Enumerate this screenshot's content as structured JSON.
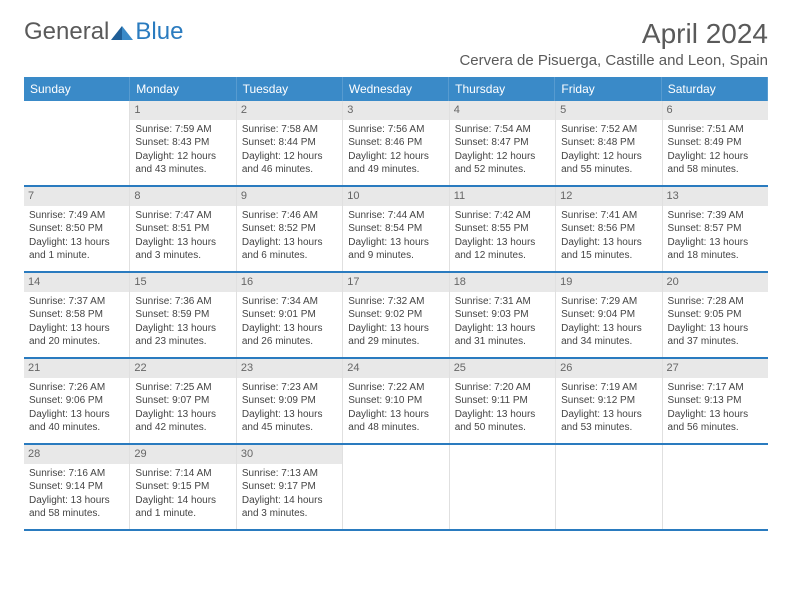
{
  "logo": {
    "text1": "General",
    "text2": "Blue"
  },
  "title": "April 2024",
  "location": "Cervera de Pisuerga, Castille and Leon, Spain",
  "colors": {
    "header_bg": "#3a8ac8",
    "header_text": "#ffffff",
    "row_divider": "#2a7bbf",
    "daynum_bg": "#e8e8e8",
    "text": "#444444"
  },
  "dayHeaders": [
    "Sunday",
    "Monday",
    "Tuesday",
    "Wednesday",
    "Thursday",
    "Friday",
    "Saturday"
  ],
  "weeks": [
    [
      {
        "n": "",
        "sr": "",
        "ss": "",
        "dl": ""
      },
      {
        "n": "1",
        "sr": "Sunrise: 7:59 AM",
        "ss": "Sunset: 8:43 PM",
        "dl": "Daylight: 12 hours and 43 minutes."
      },
      {
        "n": "2",
        "sr": "Sunrise: 7:58 AM",
        "ss": "Sunset: 8:44 PM",
        "dl": "Daylight: 12 hours and 46 minutes."
      },
      {
        "n": "3",
        "sr": "Sunrise: 7:56 AM",
        "ss": "Sunset: 8:46 PM",
        "dl": "Daylight: 12 hours and 49 minutes."
      },
      {
        "n": "4",
        "sr": "Sunrise: 7:54 AM",
        "ss": "Sunset: 8:47 PM",
        "dl": "Daylight: 12 hours and 52 minutes."
      },
      {
        "n": "5",
        "sr": "Sunrise: 7:52 AM",
        "ss": "Sunset: 8:48 PM",
        "dl": "Daylight: 12 hours and 55 minutes."
      },
      {
        "n": "6",
        "sr": "Sunrise: 7:51 AM",
        "ss": "Sunset: 8:49 PM",
        "dl": "Daylight: 12 hours and 58 minutes."
      }
    ],
    [
      {
        "n": "7",
        "sr": "Sunrise: 7:49 AM",
        "ss": "Sunset: 8:50 PM",
        "dl": "Daylight: 13 hours and 1 minute."
      },
      {
        "n": "8",
        "sr": "Sunrise: 7:47 AM",
        "ss": "Sunset: 8:51 PM",
        "dl": "Daylight: 13 hours and 3 minutes."
      },
      {
        "n": "9",
        "sr": "Sunrise: 7:46 AM",
        "ss": "Sunset: 8:52 PM",
        "dl": "Daylight: 13 hours and 6 minutes."
      },
      {
        "n": "10",
        "sr": "Sunrise: 7:44 AM",
        "ss": "Sunset: 8:54 PM",
        "dl": "Daylight: 13 hours and 9 minutes."
      },
      {
        "n": "11",
        "sr": "Sunrise: 7:42 AM",
        "ss": "Sunset: 8:55 PM",
        "dl": "Daylight: 13 hours and 12 minutes."
      },
      {
        "n": "12",
        "sr": "Sunrise: 7:41 AM",
        "ss": "Sunset: 8:56 PM",
        "dl": "Daylight: 13 hours and 15 minutes."
      },
      {
        "n": "13",
        "sr": "Sunrise: 7:39 AM",
        "ss": "Sunset: 8:57 PM",
        "dl": "Daylight: 13 hours and 18 minutes."
      }
    ],
    [
      {
        "n": "14",
        "sr": "Sunrise: 7:37 AM",
        "ss": "Sunset: 8:58 PM",
        "dl": "Daylight: 13 hours and 20 minutes."
      },
      {
        "n": "15",
        "sr": "Sunrise: 7:36 AM",
        "ss": "Sunset: 8:59 PM",
        "dl": "Daylight: 13 hours and 23 minutes."
      },
      {
        "n": "16",
        "sr": "Sunrise: 7:34 AM",
        "ss": "Sunset: 9:01 PM",
        "dl": "Daylight: 13 hours and 26 minutes."
      },
      {
        "n": "17",
        "sr": "Sunrise: 7:32 AM",
        "ss": "Sunset: 9:02 PM",
        "dl": "Daylight: 13 hours and 29 minutes."
      },
      {
        "n": "18",
        "sr": "Sunrise: 7:31 AM",
        "ss": "Sunset: 9:03 PM",
        "dl": "Daylight: 13 hours and 31 minutes."
      },
      {
        "n": "19",
        "sr": "Sunrise: 7:29 AM",
        "ss": "Sunset: 9:04 PM",
        "dl": "Daylight: 13 hours and 34 minutes."
      },
      {
        "n": "20",
        "sr": "Sunrise: 7:28 AM",
        "ss": "Sunset: 9:05 PM",
        "dl": "Daylight: 13 hours and 37 minutes."
      }
    ],
    [
      {
        "n": "21",
        "sr": "Sunrise: 7:26 AM",
        "ss": "Sunset: 9:06 PM",
        "dl": "Daylight: 13 hours and 40 minutes."
      },
      {
        "n": "22",
        "sr": "Sunrise: 7:25 AM",
        "ss": "Sunset: 9:07 PM",
        "dl": "Daylight: 13 hours and 42 minutes."
      },
      {
        "n": "23",
        "sr": "Sunrise: 7:23 AM",
        "ss": "Sunset: 9:09 PM",
        "dl": "Daylight: 13 hours and 45 minutes."
      },
      {
        "n": "24",
        "sr": "Sunrise: 7:22 AM",
        "ss": "Sunset: 9:10 PM",
        "dl": "Daylight: 13 hours and 48 minutes."
      },
      {
        "n": "25",
        "sr": "Sunrise: 7:20 AM",
        "ss": "Sunset: 9:11 PM",
        "dl": "Daylight: 13 hours and 50 minutes."
      },
      {
        "n": "26",
        "sr": "Sunrise: 7:19 AM",
        "ss": "Sunset: 9:12 PM",
        "dl": "Daylight: 13 hours and 53 minutes."
      },
      {
        "n": "27",
        "sr": "Sunrise: 7:17 AM",
        "ss": "Sunset: 9:13 PM",
        "dl": "Daylight: 13 hours and 56 minutes."
      }
    ],
    [
      {
        "n": "28",
        "sr": "Sunrise: 7:16 AM",
        "ss": "Sunset: 9:14 PM",
        "dl": "Daylight: 13 hours and 58 minutes."
      },
      {
        "n": "29",
        "sr": "Sunrise: 7:14 AM",
        "ss": "Sunset: 9:15 PM",
        "dl": "Daylight: 14 hours and 1 minute."
      },
      {
        "n": "30",
        "sr": "Sunrise: 7:13 AM",
        "ss": "Sunset: 9:17 PM",
        "dl": "Daylight: 14 hours and 3 minutes."
      },
      {
        "n": "",
        "sr": "",
        "ss": "",
        "dl": ""
      },
      {
        "n": "",
        "sr": "",
        "ss": "",
        "dl": ""
      },
      {
        "n": "",
        "sr": "",
        "ss": "",
        "dl": ""
      },
      {
        "n": "",
        "sr": "",
        "ss": "",
        "dl": ""
      }
    ]
  ]
}
